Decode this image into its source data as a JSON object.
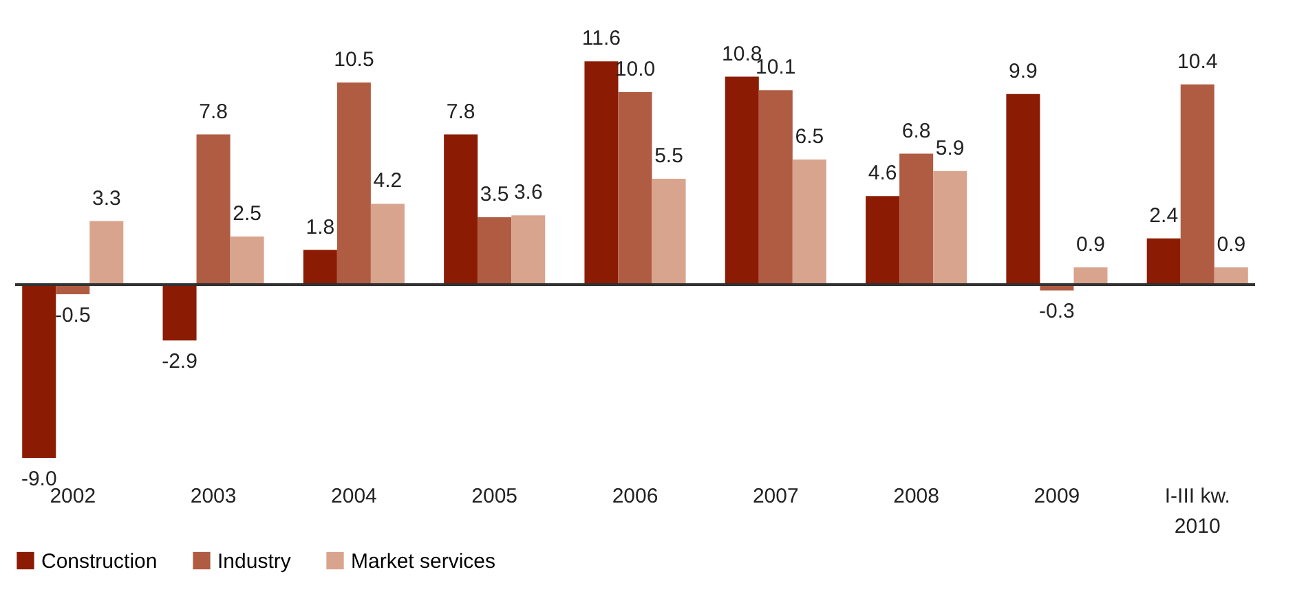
{
  "chart_data": {
    "type": "bar",
    "categories": [
      "2002",
      "2003",
      "2004",
      "2005",
      "2006",
      "2007",
      "2008",
      "2009",
      "I-III kw.\n2010"
    ],
    "series": [
      {
        "name": "Construction",
        "color": "#8b1c03",
        "values": [
          -9.0,
          -2.9,
          1.8,
          7.8,
          11.6,
          10.8,
          4.6,
          9.9,
          2.4
        ],
        "value_labels": [
          "-9.0",
          "-2.9",
          "1.8",
          "7.8",
          "11.6",
          "10.8",
          "4.6",
          "9.9",
          "2.4"
        ]
      },
      {
        "name": "Industry",
        "color": "#b05c42",
        "values": [
          -0.5,
          7.8,
          10.5,
          3.5,
          10.0,
          10.1,
          6.8,
          -0.3,
          10.4
        ],
        "value_labels": [
          "-0.5",
          "7.8",
          "10.5",
          "3.5",
          "10.0",
          "10.1",
          "6.8",
          "-0.3",
          "10.4"
        ]
      },
      {
        "name": "Market services",
        "color": "#d8a48e",
        "values": [
          3.3,
          2.5,
          4.2,
          3.6,
          5.5,
          6.5,
          5.9,
          0.9,
          0.9
        ],
        "value_labels": [
          "3.3",
          "2.5",
          "4.2",
          "3.6",
          "5.5",
          "6.5",
          "5.9",
          "0.9",
          "0.9"
        ]
      }
    ],
    "legend": "bottom",
    "grid": false
  }
}
